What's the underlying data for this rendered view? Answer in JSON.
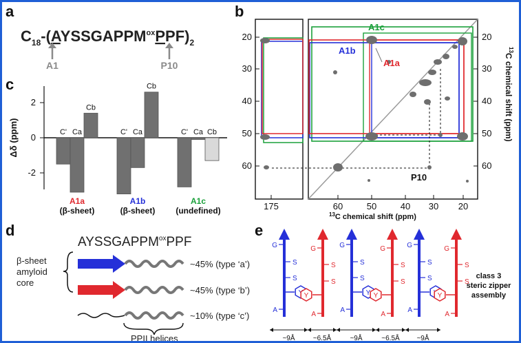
{
  "colors": {
    "frame": "#1f5fd6",
    "red": "#e0282e",
    "blue": "#2530d8",
    "green": "#1aa03a",
    "gray": "#707070",
    "lightgray": "#d9d9d9",
    "diag": "#9a9a9a"
  },
  "panel_a": {
    "label": "a",
    "prefix": "C",
    "prefix_sub": "18",
    "seq_pre": "-(",
    "seq_A": "A",
    "seq_mid": "YSSGAPPM",
    "seq_ox": "ox",
    "seq_P": "P",
    "seq_post": "PF)",
    "seq_sub": "2",
    "marker_a1": "A1",
    "marker_p10": "P10"
  },
  "panel_b": {
    "label": "b",
    "left_ticks": [
      "20",
      "30",
      "40",
      "50",
      "60"
    ],
    "right_ticks": [
      "20",
      "30",
      "40",
      "50",
      "60"
    ],
    "x_ticks_left": [
      "175"
    ],
    "x_ticks_main": [
      "60",
      "50",
      "40",
      "30",
      "20"
    ],
    "xlabel_sup": "13",
    "xlabel": "C chemical shift (ppm)",
    "ylabel": "C chemical shift (ppm)",
    "ylabel_sup": "13",
    "label_a1c": "A1c",
    "label_a1b": "A1b",
    "label_a1a": "A1a",
    "label_p10": "P10"
  },
  "panel_c": {
    "label": "c",
    "ylabel": "Δδ (ppm)",
    "y_ticks": [
      "2",
      "0",
      "-2"
    ],
    "chart_data": {
      "type": "bar",
      "ylabel": "Δδ (ppm)",
      "ylim": [
        -3.8,
        2.9
      ],
      "groups": [
        {
          "name": "A1a",
          "sub": "(β-sheet)",
          "categories": [
            "C'",
            "Ca",
            "Cb"
          ],
          "values": [
            -1.5,
            -3.1,
            1.4
          ],
          "color": "#e0282e"
        },
        {
          "name": "A1b",
          "sub": "(β-sheet)",
          "categories": [
            "C'",
            "Ca",
            "Cb"
          ],
          "values": [
            -3.2,
            -1.7,
            2.6
          ],
          "color": "#2530d8"
        },
        {
          "name": "A1c",
          "sub": "(undefined)",
          "categories": [
            "C'",
            "Ca",
            "Cb"
          ],
          "values": [
            -2.8,
            -0.1,
            -1.3
          ],
          "color": "#1aa03a"
        }
      ]
    }
  },
  "panel_d": {
    "label": "d",
    "seq": "AYSSGAPPM",
    "seq_ox": "ox",
    "seq_end": "PPF",
    "core_label": "β-sheet\namyloid\ncore",
    "rows": [
      {
        "pct": "~45% (type ‘a’)",
        "color": "#2530d8"
      },
      {
        "pct": "~45% (type ‘b’)",
        "color": "#e0282e"
      },
      {
        "pct": "~10% (type ‘c’)",
        "color": "#111111"
      }
    ],
    "ppii_label": "PPII helices"
  },
  "panel_e": {
    "label": "e",
    "residues": [
      "G",
      "S",
      "S",
      "Y",
      "A"
    ],
    "distances": [
      "~9Å",
      "~6.5Å",
      "~9Å",
      "~6.5Å",
      "~9Å"
    ],
    "side_label": "class 3\nsteric zipper\nassembly"
  }
}
